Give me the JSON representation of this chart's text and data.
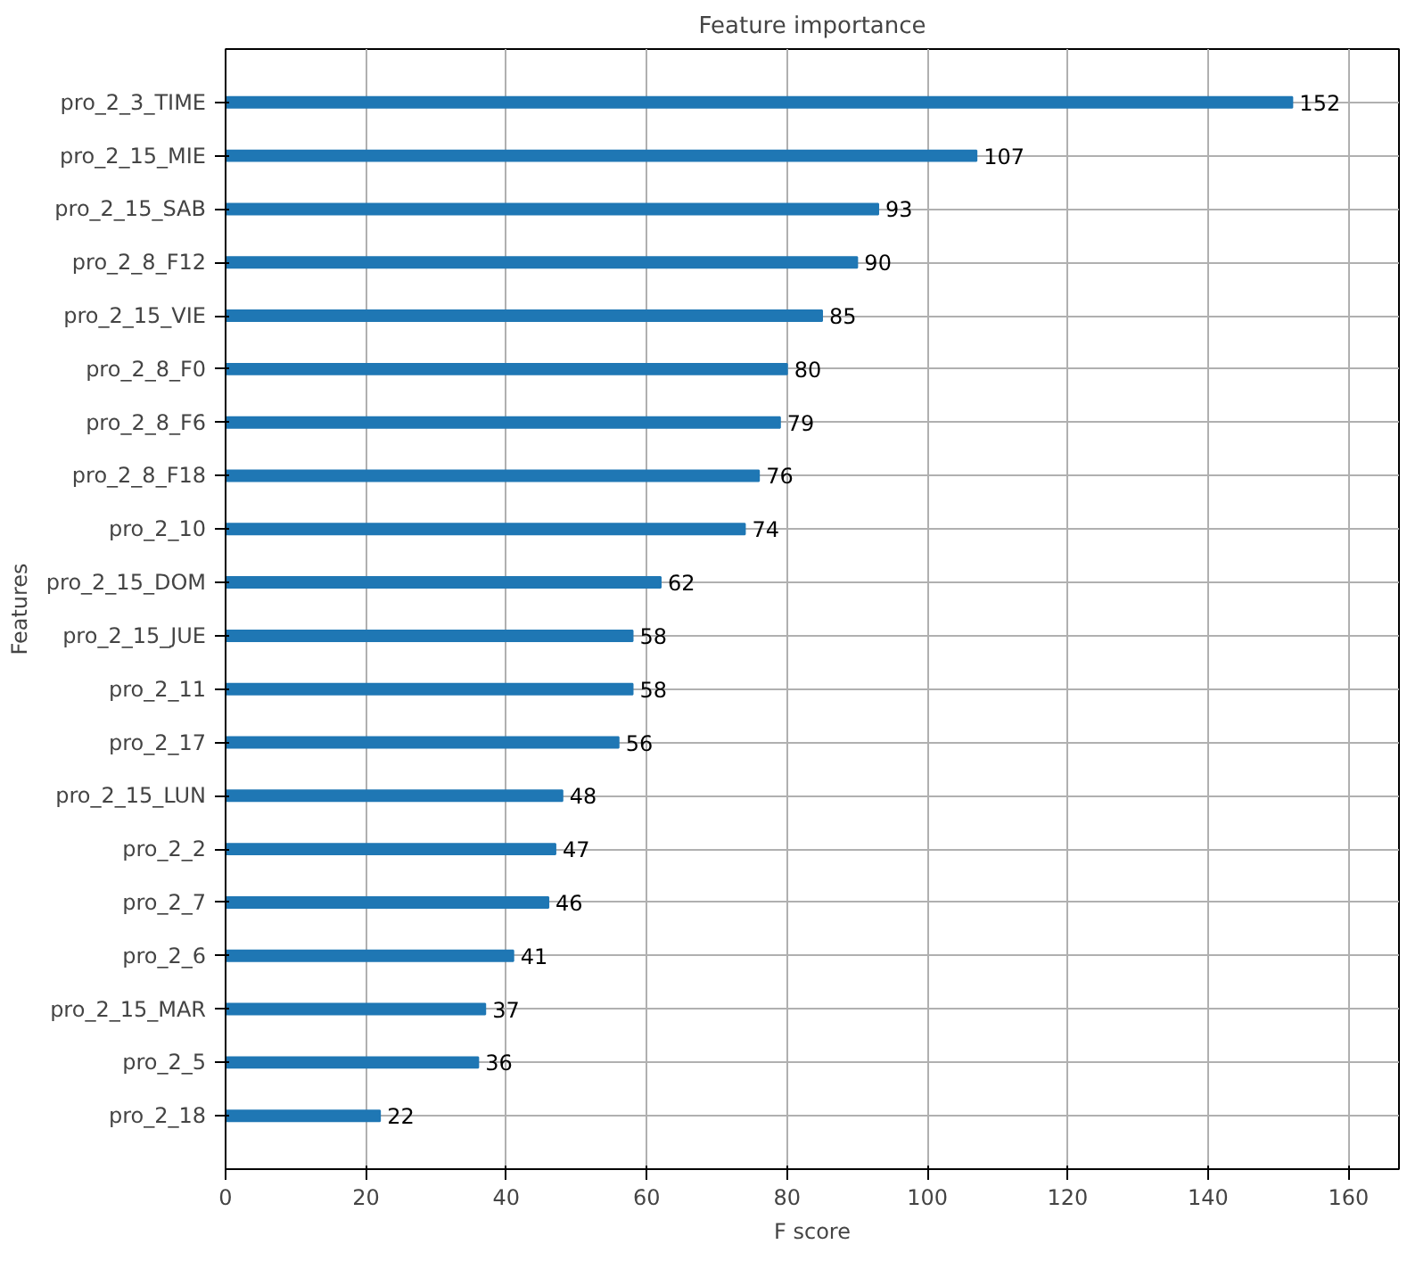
{
  "chart_data": {
    "type": "bar",
    "orientation": "horizontal",
    "title": "Feature importance",
    "xlabel": "F score",
    "ylabel": "Features",
    "categories": [
      "pro_2_3_TIME",
      "pro_2_15_MIE",
      "pro_2_15_SAB",
      "pro_2_8_F12",
      "pro_2_15_VIE",
      "pro_2_8_F0",
      "pro_2_8_F6",
      "pro_2_8_F18",
      "pro_2_10",
      "pro_2_15_DOM",
      "pro_2_15_JUE",
      "pro_2_11",
      "pro_2_17",
      "pro_2_15_LUN",
      "pro_2_2",
      "pro_2_7",
      "pro_2_6",
      "pro_2_15_MAR",
      "pro_2_5",
      "pro_2_18"
    ],
    "values": [
      152,
      107,
      93,
      90,
      85,
      80,
      79,
      76,
      74,
      62,
      58,
      58,
      56,
      48,
      47,
      46,
      41,
      37,
      36,
      22
    ],
    "color": "#1f77b4",
    "xlim": [
      0,
      167.2
    ],
    "xticks": [
      0,
      20,
      40,
      60,
      80,
      100,
      120,
      140,
      160
    ],
    "grid": true,
    "data_labels": true
  }
}
